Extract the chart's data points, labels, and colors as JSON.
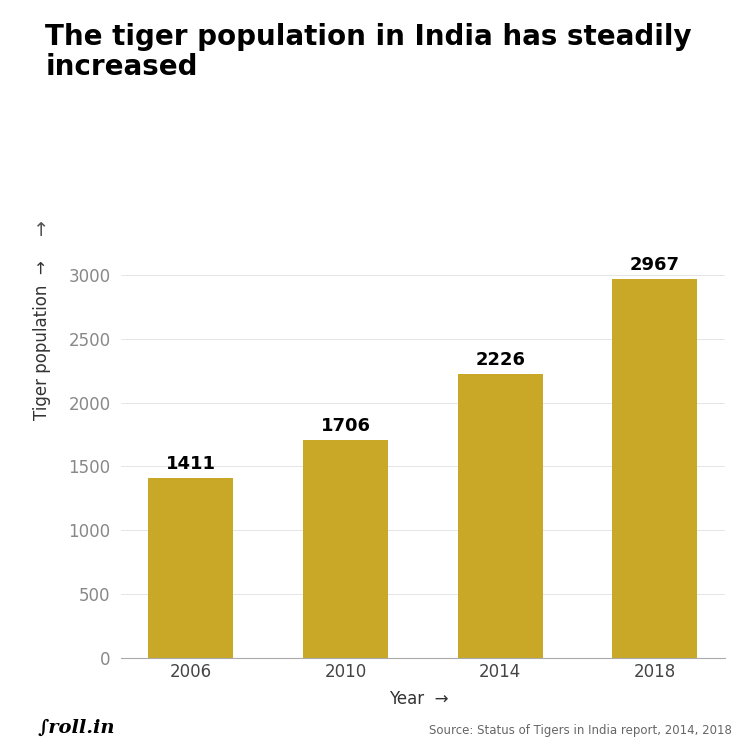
{
  "title_line1": "The tiger population in India has steadily",
  "title_line2": "increased",
  "categories": [
    "2006",
    "2010",
    "2014",
    "2018"
  ],
  "values": [
    1411,
    1706,
    2226,
    2967
  ],
  "bar_color": "#C9A827",
  "background_color": "#ffffff",
  "ylabel": "Tiger population",
  "xlabel": "Year",
  "ylim": [
    0,
    3200
  ],
  "yticks": [
    0,
    500,
    1000,
    1500,
    2000,
    2500,
    3000
  ],
  "title_fontsize": 20,
  "axis_label_fontsize": 12,
  "tick_fontsize": 12,
  "value_label_fontsize": 13,
  "source_text": "Source: Status of Tigers in India report, 2014, 2018",
  "bar_width": 0.55
}
